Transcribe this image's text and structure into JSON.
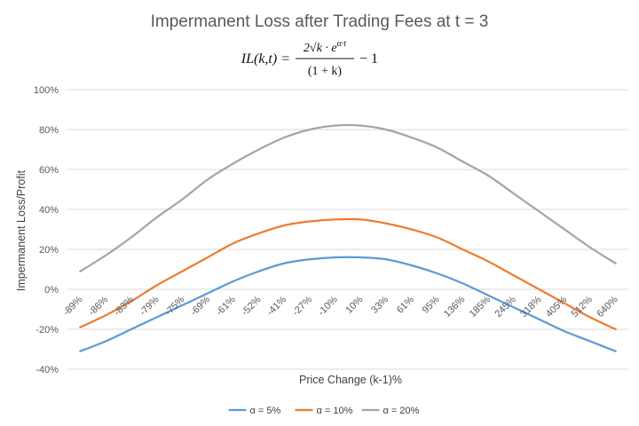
{
  "chart_data": {
    "type": "line",
    "title": "Impermanent Loss after Trading Fees at t = 3",
    "formula": {
      "lhs": "IL(k,t) =",
      "numerator": "2√k · e",
      "numerator_exponent": "α·t",
      "denominator": "(1 + k)",
      "suffix": "− 1"
    },
    "xlabel": "Price Change (k-1)%",
    "ylabel": "Impermanent Loss/Profit",
    "ylim": [
      -40,
      100
    ],
    "yticks": [
      "-40%",
      "-20%",
      "0%",
      "20%",
      "40%",
      "60%",
      "80%",
      "100%"
    ],
    "ytick_values": [
      -40,
      -20,
      0,
      20,
      40,
      60,
      80,
      100
    ],
    "categories": [
      "-89%",
      "-86%",
      "-83%",
      "-79%",
      "-75%",
      "-69%",
      "-61%",
      "-52%",
      "-41%",
      "-27%",
      "-10%",
      "10%",
      "33%",
      "61%",
      "95%",
      "136%",
      "185%",
      "245%",
      "318%",
      "405%",
      "512%",
      "640%"
    ],
    "series": [
      {
        "name": "α = 5%",
        "color": "#5b9bd5",
        "values": [
          -31,
          -26,
          -20,
          -14,
          -8,
          -2,
          4,
          9,
          13,
          15,
          16,
          16,
          15,
          12,
          8,
          3,
          -3,
          -9,
          -15,
          -21,
          -26,
          -31
        ]
      },
      {
        "name": "α = 10%",
        "color": "#ed7d31",
        "values": [
          -19,
          -13,
          -6,
          2,
          9,
          16,
          23,
          28,
          32,
          34,
          35,
          35,
          33,
          30,
          26,
          20,
          14,
          7,
          0,
          -7,
          -14,
          -20
        ]
      },
      {
        "name": "α = 20%",
        "color": "#a5a5a5",
        "values": [
          9,
          17,
          26,
          36,
          45,
          55,
          63,
          70,
          76,
          80,
          82,
          82,
          80,
          76,
          71,
          64,
          57,
          48,
          39,
          30,
          21,
          13
        ]
      }
    ],
    "grid": true,
    "legend_position": "bottom"
  }
}
